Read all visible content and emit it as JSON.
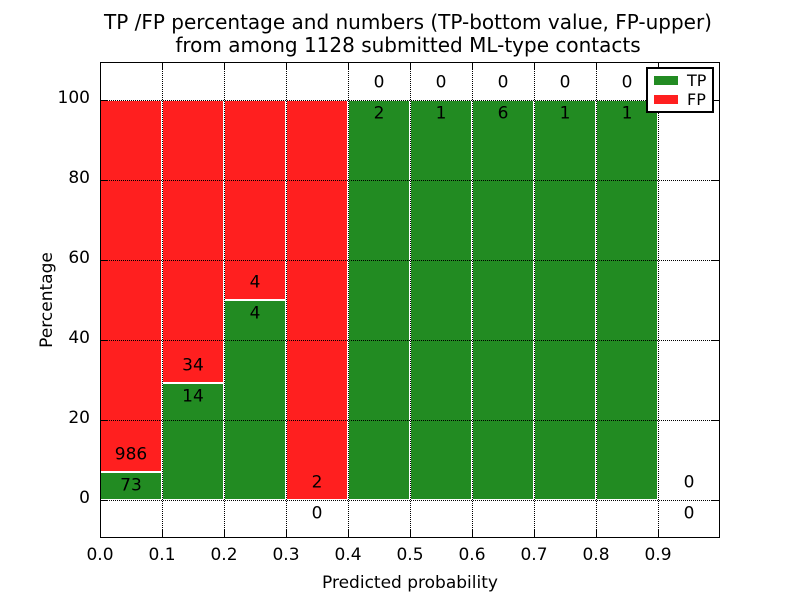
{
  "figure": {
    "title_line1": "TP /FP percentage and numbers (TP-bottom value, FP-upper)",
    "title_line2": "from among 1128 submitted ML-type contacts",
    "xlabel": "Predicted probability",
    "ylabel": "Percentage"
  },
  "legend": {
    "items": [
      {
        "label": "TP",
        "color": "#228B22"
      },
      {
        "label": "FP",
        "color": "#FF1F1F"
      }
    ]
  },
  "chart_data": {
    "type": "bar",
    "stacked": true,
    "normalized": "percent",
    "title": "TP /FP percentage and numbers (TP-bottom value, FP-upper) from among 1128 submitted ML-type contacts",
    "xlabel": "Predicted probability",
    "ylabel": "Percentage",
    "total_contacts": 1128,
    "colors": {
      "tp": "#228B22",
      "fp": "#FF1F1F"
    },
    "grid": "dotted",
    "legend_position": "upper right",
    "xlim": [
      0.0,
      1.0
    ],
    "ylim": [
      -9.5,
      109.5
    ],
    "x_ticks": [
      "0.0",
      "0.1",
      "0.2",
      "0.3",
      "0.4",
      "0.5",
      "0.6",
      "0.7",
      "0.8",
      "0.9"
    ],
    "y_ticks": [
      0,
      20,
      40,
      60,
      80,
      100
    ],
    "bin_width": 0.1,
    "categories": [
      "0.0-0.1",
      "0.1-0.2",
      "0.2-0.3",
      "0.3-0.4",
      "0.4-0.5",
      "0.5-0.6",
      "0.6-0.7",
      "0.7-0.8",
      "0.8-0.9",
      "0.9-1.0"
    ],
    "series": [
      {
        "name": "TP",
        "color": "#228B22",
        "values": [
          73,
          14,
          4,
          0,
          2,
          1,
          6,
          1,
          1,
          0
        ]
      },
      {
        "name": "FP",
        "color": "#FF1F1F",
        "values": [
          986,
          34,
          4,
          2,
          0,
          0,
          0,
          0,
          0,
          0
        ]
      }
    ],
    "annotations": "Each bin is labeled with FP count above TP count at the TP/FP boundary"
  }
}
